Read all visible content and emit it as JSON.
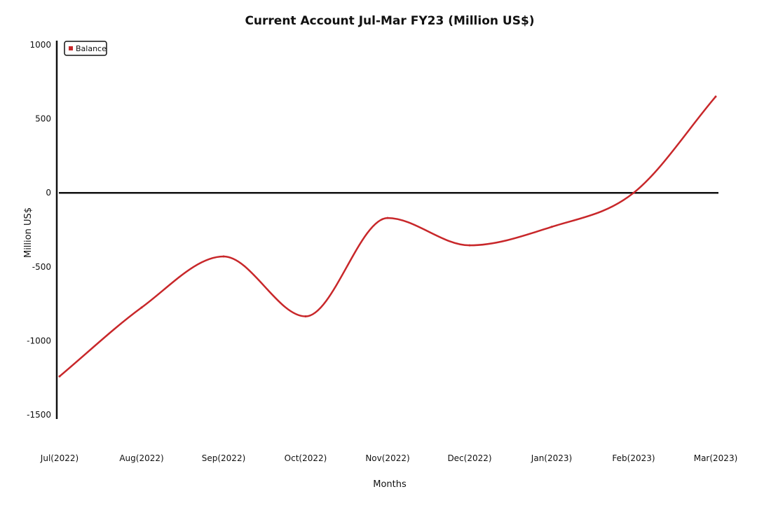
{
  "chart_data": {
    "type": "line",
    "title": "Current Account Jul-Mar FY23 (Million US$)",
    "xlabel": "Months",
    "ylabel": "Million US$",
    "categories": [
      "Jul(2022)",
      "Aug(2022)",
      "Sep(2022)",
      "Oct(2022)",
      "Nov(2022)",
      "Dec(2022)",
      "Jan(2023)",
      "Feb(2023)",
      "Mar(2023)"
    ],
    "series": [
      {
        "name": "Balance",
        "color": "#c8272a",
        "values": [
          -1240,
          -775,
          -430,
          -835,
          -170,
          -355,
          -230,
          0,
          650
        ]
      }
    ],
    "ylim": [
      -1500,
      1000
    ],
    "yticks": [
      1000,
      500,
      0,
      -500,
      -1000,
      -1500
    ],
    "ytick_labels": [
      "1000",
      "500",
      "0",
      "-500",
      "-1000",
      "-1500"
    ],
    "zero_line": true,
    "grid": false,
    "legend_position": "top-left"
  }
}
